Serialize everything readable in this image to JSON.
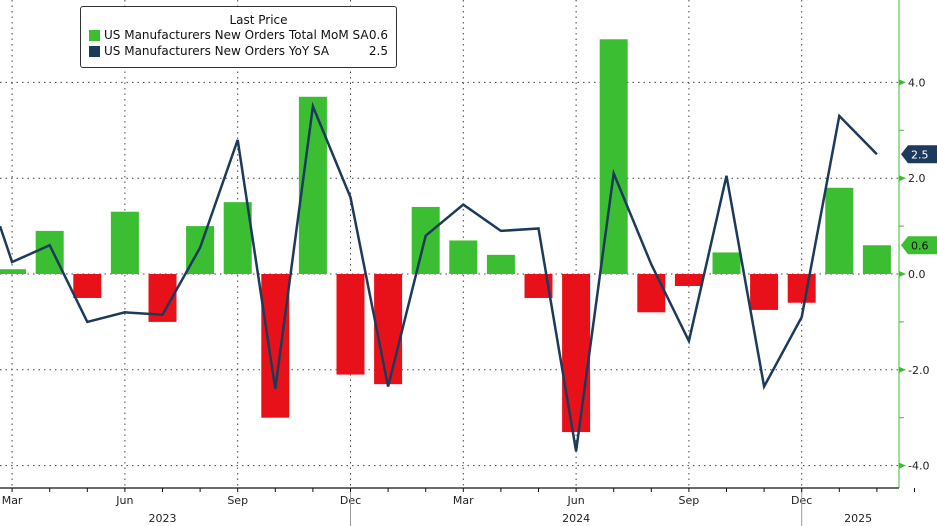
{
  "chart_data": {
    "type": "bar+line",
    "legend_title": "Last Price",
    "legend_position": "top-left",
    "x": [
      "2023-02",
      "2023-03",
      "2023-04",
      "2023-05",
      "2023-06",
      "2023-07",
      "2023-08",
      "2023-09",
      "2023-10",
      "2023-11",
      "2023-12",
      "2024-01",
      "2024-02",
      "2024-03",
      "2024-04",
      "2024-05",
      "2024-06",
      "2024-07",
      "2024-08",
      "2024-09",
      "2024-10",
      "2024-11",
      "2024-12",
      "2025-01",
      "2025-02"
    ],
    "series": [
      {
        "name": "US Manufacturers New Orders Total MoM SA",
        "type": "bar",
        "last": "0.6",
        "color_pos": "#3cbe32",
        "color_neg": "#e8111a",
        "values": [
          null,
          0.1,
          0.9,
          -0.5,
          1.3,
          -1.0,
          1.0,
          1.5,
          -3.0,
          3.7,
          -2.1,
          -2.3,
          1.4,
          0.7,
          0.4,
          -0.5,
          -3.3,
          4.9,
          -0.8,
          -0.25,
          0.45,
          -0.75,
          -0.6,
          1.8,
          0.6
        ]
      },
      {
        "name": "US Manufacturers New Orders YoY SA",
        "type": "line",
        "last": "2.5",
        "color": "#1b3a5c",
        "values": [
          1.0,
          0.25,
          0.6,
          -1.0,
          -0.8,
          -0.85,
          0.55,
          2.8,
          -2.4,
          3.5,
          1.6,
          -2.35,
          0.8,
          1.45,
          0.9,
          0.95,
          -3.7,
          2.1,
          0.2,
          -1.4,
          2.05,
          -2.35,
          -0.9,
          3.3,
          2.5
        ]
      }
    ],
    "yticks": [
      "4.0",
      "2.0",
      "0.0",
      "-2.0",
      "-4.0"
    ],
    "ylim": [
      -4.5,
      5.7
    ],
    "xtick_labels": [
      {
        "m": "2023-03",
        "t": "Mar"
      },
      {
        "m": "2023-06",
        "t": "Jun"
      },
      {
        "m": "2023-09",
        "t": "Sep"
      },
      {
        "m": "2023-12",
        "t": "Dec"
      },
      {
        "m": "2024-03",
        "t": "Mar"
      },
      {
        "m": "2024-06",
        "t": "Jun"
      },
      {
        "m": "2024-09",
        "t": "Sep"
      },
      {
        "m": "2024-12",
        "t": "Dec"
      }
    ],
    "year_labels": [
      {
        "m": "2023-07",
        "t": "2023"
      },
      {
        "m": "2024-06",
        "t": "2024"
      },
      {
        "m": "2025-01.5",
        "t": "2025"
      }
    ],
    "grid": true
  }
}
